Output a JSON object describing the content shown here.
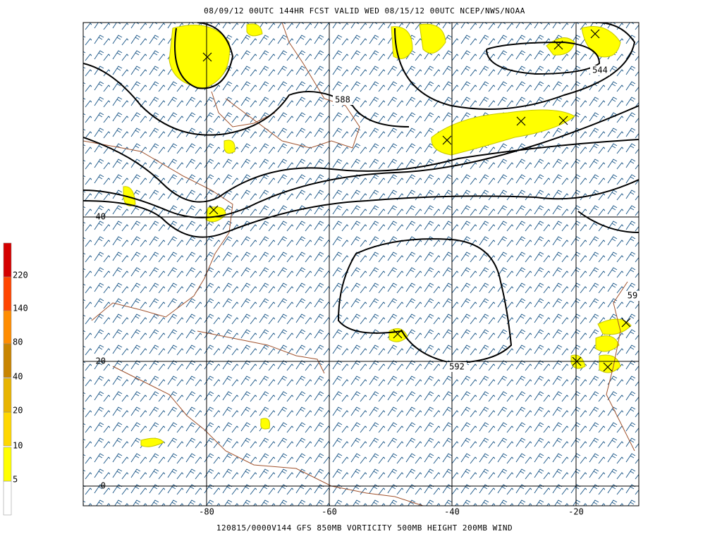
{
  "header": {
    "title": "08/09/12 00UTC  144HR  FCST VALID WED 08/15/12 00UTC  NCEP/NWS/NOAA"
  },
  "footer": {
    "caption": "120815/0000V144 GFS  850MB VORTICITY 500MB HEIGHT 200MB WIND"
  },
  "map": {
    "lat_labels": [
      40,
      20,
      0
    ],
    "lon_labels": [
      -80,
      -60,
      -40,
      -20
    ],
    "contour_labels": [
      588,
      544,
      592,
      59
    ]
  },
  "colorbar": {
    "labels": [
      5,
      10,
      20,
      40,
      80,
      140,
      220
    ]
  }
}
